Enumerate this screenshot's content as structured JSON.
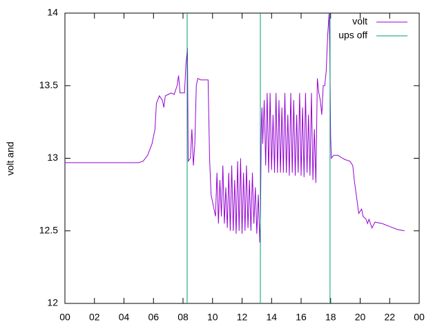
{
  "chart_data": {
    "type": "line",
    "ylabel": "volt and",
    "xlim": [
      0,
      24
    ],
    "ylim": [
      12,
      14
    ],
    "xticks": [
      {
        "value": 0,
        "label": "00"
      },
      {
        "value": 2,
        "label": "02"
      },
      {
        "value": 4,
        "label": "04"
      },
      {
        "value": 6,
        "label": "06"
      },
      {
        "value": 8,
        "label": "08"
      },
      10,
      12,
      14,
      16,
      18,
      20,
      22,
      {
        "value": 24,
        "label": "00"
      }
    ],
    "yticks": [
      12,
      12.5,
      13,
      13.5,
      14
    ],
    "legend": "top-right",
    "series": [
      {
        "name": "volt",
        "color": "#9400d3",
        "style": "line",
        "x": [
          0,
          5.0,
          5.3,
          5.6,
          5.9,
          6.1,
          6.2,
          6.4,
          6.6,
          6.7,
          6.8,
          7.0,
          7.2,
          7.4,
          7.6,
          7.7,
          7.8,
          8.1,
          8.2,
          8.3,
          8.35,
          8.5,
          8.6,
          8.7,
          8.8,
          8.9,
          9.0,
          9.2,
          9.7,
          9.8,
          9.9,
          10.0,
          10.1,
          10.2,
          10.3,
          10.4,
          10.5,
          10.6,
          10.7,
          10.8,
          10.9,
          11.0,
          11.1,
          11.2,
          11.3,
          11.4,
          11.5,
          11.6,
          11.7,
          11.8,
          11.9,
          12.0,
          12.1,
          12.2,
          12.3,
          12.4,
          12.5,
          12.6,
          12.7,
          12.8,
          12.9,
          13.0,
          13.1,
          13.2,
          13.25,
          13.3,
          13.35,
          13.4,
          13.5,
          13.6,
          13.7,
          13.8,
          13.9,
          14.0,
          14.1,
          14.2,
          14.3,
          14.4,
          14.5,
          14.6,
          14.7,
          14.8,
          14.9,
          15.0,
          15.1,
          15.2,
          15.3,
          15.4,
          15.5,
          15.6,
          15.7,
          15.8,
          15.9,
          16.0,
          16.1,
          16.2,
          16.3,
          16.4,
          16.5,
          16.6,
          16.7,
          16.8,
          16.9,
          17.0,
          17.1,
          17.2,
          17.3,
          17.4,
          17.5,
          17.6,
          17.7,
          17.8,
          17.9,
          17.95,
          18.0,
          18.05,
          18.2,
          18.5,
          18.8,
          19.0,
          19.3,
          19.5,
          19.6,
          19.8,
          19.9,
          20.1,
          20.2,
          20.4,
          20.5,
          20.6,
          20.8,
          21.0,
          21.5,
          22.0,
          22.5,
          23.0
        ],
        "values": [
          12.97,
          12.97,
          12.98,
          13.02,
          13.1,
          13.2,
          13.38,
          13.43,
          13.4,
          13.35,
          13.43,
          13.44,
          13.45,
          13.44,
          13.5,
          13.57,
          13.45,
          13.45,
          13.65,
          13.76,
          12.98,
          13.0,
          13.2,
          12.95,
          13.1,
          13.5,
          13.55,
          13.54,
          13.54,
          13.0,
          12.75,
          12.7,
          12.65,
          12.6,
          12.9,
          12.55,
          12.85,
          12.6,
          12.95,
          12.55,
          12.8,
          12.52,
          12.9,
          12.5,
          12.95,
          12.5,
          12.85,
          12.48,
          12.98,
          12.5,
          13.0,
          12.48,
          12.9,
          12.5,
          12.95,
          12.52,
          12.85,
          12.5,
          12.9,
          12.55,
          12.8,
          12.48,
          12.75,
          12.42,
          12.6,
          13.2,
          13.35,
          13.1,
          13.4,
          12.95,
          13.45,
          12.9,
          13.45,
          12.92,
          13.3,
          12.9,
          13.45,
          12.9,
          13.4,
          12.9,
          13.35,
          12.9,
          13.45,
          12.9,
          13.3,
          12.88,
          13.45,
          12.9,
          13.4,
          12.88,
          13.3,
          12.9,
          13.45,
          12.88,
          13.35,
          12.87,
          13.45,
          12.9,
          13.3,
          12.88,
          13.45,
          12.85,
          13.2,
          12.83,
          13.55,
          13.45,
          13.4,
          13.3,
          13.5,
          13.5,
          13.6,
          13.85,
          14.0,
          13.7,
          13.15,
          13.0,
          13.02,
          13.02,
          13.0,
          12.99,
          12.98,
          12.95,
          12.85,
          12.7,
          12.62,
          12.65,
          12.6,
          12.58,
          12.55,
          12.58,
          12.52,
          12.56,
          12.55,
          12.53,
          12.51,
          12.5
        ]
      },
      {
        "name": "ups off",
        "color": "#009e73",
        "style": "impulses",
        "x": [
          8.28,
          13.24,
          17.96
        ],
        "values": [
          14,
          14,
          14
        ]
      }
    ]
  }
}
